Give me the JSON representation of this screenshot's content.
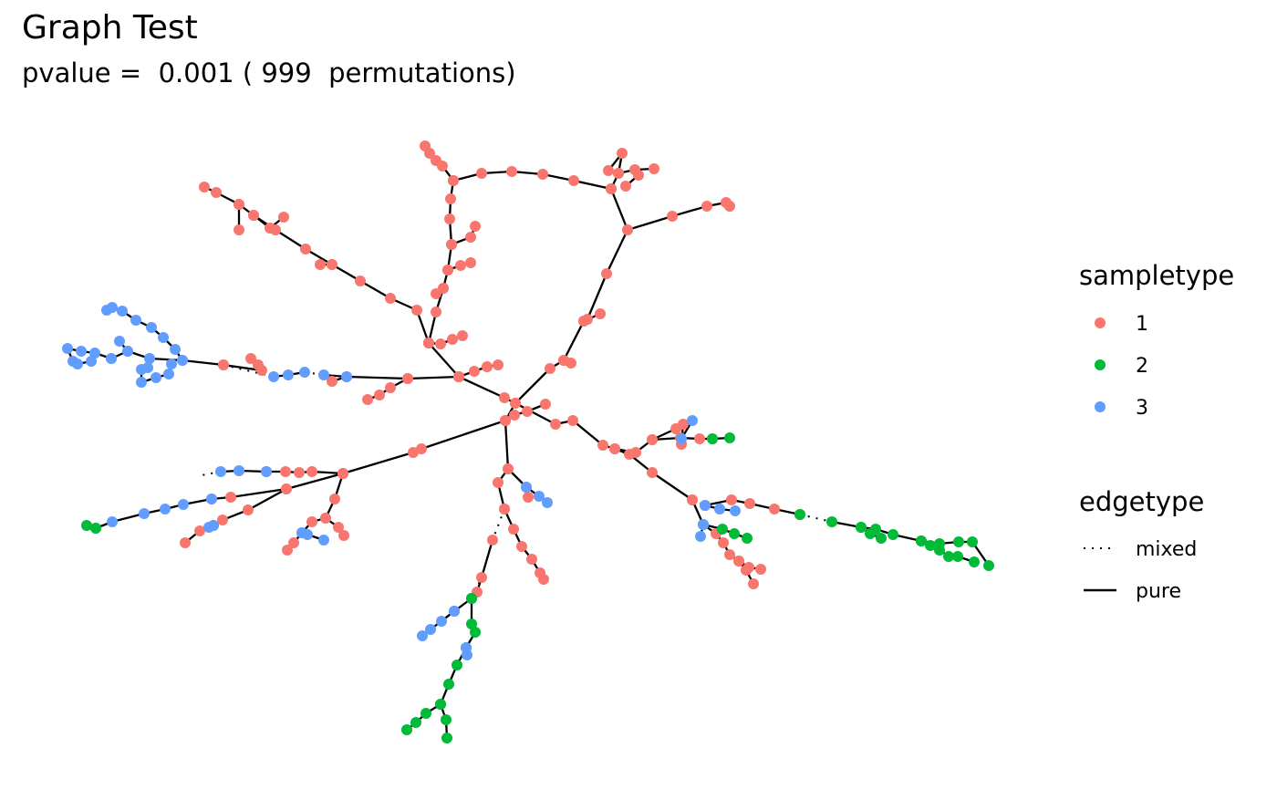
{
  "chart_data": {
    "type": "network",
    "title": "Graph Test",
    "subtitle": "pvalue =  0.001 ( 999  permutations)",
    "node_colors": {
      "1": "#F8766D",
      "2": "#00BA38",
      "3": "#619CFF"
    },
    "legend": {
      "position": "right",
      "sampletype": {
        "title": "sampletype",
        "items": [
          "1",
          "2",
          "3"
        ]
      },
      "edgetype": {
        "title": "edgetype",
        "items": [
          {
            "label": "mixed",
            "style": "dotted"
          },
          {
            "label": "pure",
            "style": "solid"
          }
        ]
      }
    }
  }
}
